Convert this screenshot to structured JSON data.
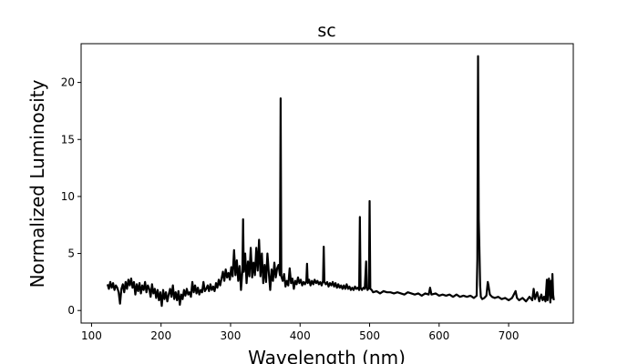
{
  "chart_data": {
    "type": "line",
    "title": "sc",
    "xlabel": "Wavelength (nm)",
    "ylabel": "Normalized Luminosity",
    "xlim": [
      85,
      793
    ],
    "ylim": [
      -1.1,
      23.4
    ],
    "xticks": [
      100,
      200,
      300,
      400,
      500,
      600,
      700
    ],
    "yticks": [
      0,
      5,
      10,
      15,
      20
    ],
    "grid": false,
    "series": [
      {
        "color": "#000000",
        "points": [
          [
            123,
            2.3
          ],
          [
            125,
            1.9
          ],
          [
            127,
            2.5
          ],
          [
            129,
            2.0
          ],
          [
            131,
            2.4
          ],
          [
            133,
            1.8
          ],
          [
            135,
            2.2
          ],
          [
            137,
            2.0
          ],
          [
            139,
            1.6
          ],
          [
            141,
            0.6
          ],
          [
            143,
            1.9
          ],
          [
            145,
            2.3
          ],
          [
            147,
            1.6
          ],
          [
            149,
            2.5
          ],
          [
            151,
            1.9
          ],
          [
            153,
            2.7
          ],
          [
            155,
            2.2
          ],
          [
            157,
            2.8
          ],
          [
            159,
            2.0
          ],
          [
            161,
            2.5
          ],
          [
            163,
            1.4
          ],
          [
            165,
            2.3
          ],
          [
            167,
            1.7
          ],
          [
            169,
            2.4
          ],
          [
            171,
            1.5
          ],
          [
            173,
            2.2
          ],
          [
            175,
            1.8
          ],
          [
            177,
            2.5
          ],
          [
            179,
            1.6
          ],
          [
            181,
            2.2
          ],
          [
            183,
            1.9
          ],
          [
            185,
            1.2
          ],
          [
            187,
            2.3
          ],
          [
            189,
            1.5
          ],
          [
            191,
            1.9
          ],
          [
            193,
            1.1
          ],
          [
            195,
            1.8
          ],
          [
            197,
            0.9
          ],
          [
            199,
            1.6
          ],
          [
            201,
            0.4
          ],
          [
            203,
            1.8
          ],
          [
            205,
            1.0
          ],
          [
            207,
            1.6
          ],
          [
            209,
            0.8
          ],
          [
            211,
            1.4
          ],
          [
            213,
            1.9
          ],
          [
            215,
            1.2
          ],
          [
            217,
            2.2
          ],
          [
            219,
            1.0
          ],
          [
            221,
            1.6
          ],
          [
            223,
            0.9
          ],
          [
            225,
            1.7
          ],
          [
            227,
            0.5
          ],
          [
            229,
            1.4
          ],
          [
            231,
            1.0
          ],
          [
            233,
            1.8
          ],
          [
            235,
            1.3
          ],
          [
            237,
            1.9
          ],
          [
            239,
            1.4
          ],
          [
            241,
            1.6
          ],
          [
            243,
            1.2
          ],
          [
            245,
            2.5
          ],
          [
            247,
            1.6
          ],
          [
            249,
            2.2
          ],
          [
            251,
            1.5
          ],
          [
            253,
            2.0
          ],
          [
            255,
            1.4
          ],
          [
            257,
            1.8
          ],
          [
            259,
            1.6
          ],
          [
            261,
            2.5
          ],
          [
            263,
            1.7
          ],
          [
            265,
            1.9
          ],
          [
            267,
            2.2
          ],
          [
            269,
            1.7
          ],
          [
            271,
            2.3
          ],
          [
            273,
            1.8
          ],
          [
            275,
            2.1
          ],
          [
            277,
            1.7
          ],
          [
            279,
            2.4
          ],
          [
            281,
            2.0
          ],
          [
            283,
            2.7
          ],
          [
            285,
            2.2
          ],
          [
            287,
            2.8
          ],
          [
            289,
            3.4
          ],
          [
            291,
            2.6
          ],
          [
            293,
            3.6
          ],
          [
            295,
            2.9
          ],
          [
            297,
            3.3
          ],
          [
            299,
            2.7
          ],
          [
            301,
            3.8
          ],
          [
            303,
            3.0
          ],
          [
            305,
            5.3
          ],
          [
            307,
            3.1
          ],
          [
            309,
            4.4
          ],
          [
            311,
            2.6
          ],
          [
            313,
            3.9
          ],
          [
            315,
            1.8
          ],
          [
            317,
            3.5
          ],
          [
            318,
            8.0
          ],
          [
            319,
            3.4
          ],
          [
            321,
            5.0
          ],
          [
            323,
            2.4
          ],
          [
            325,
            4.3
          ],
          [
            327,
            3.0
          ],
          [
            329,
            5.5
          ],
          [
            331,
            2.9
          ],
          [
            333,
            4.2
          ],
          [
            335,
            3.1
          ],
          [
            337,
            5.5
          ],
          [
            339,
            3.5
          ],
          [
            341,
            6.2
          ],
          [
            343,
            3.0
          ],
          [
            345,
            5.0
          ],
          [
            347,
            2.4
          ],
          [
            349,
            4.0
          ],
          [
            351,
            2.5
          ],
          [
            353,
            5.0
          ],
          [
            355,
            3.3
          ],
          [
            357,
            1.8
          ],
          [
            359,
            3.6
          ],
          [
            361,
            2.6
          ],
          [
            363,
            4.2
          ],
          [
            365,
            2.9
          ],
          [
            367,
            3.7
          ],
          [
            369,
            4.0
          ],
          [
            371,
            3.1
          ],
          [
            372,
            18.6
          ],
          [
            373,
            3.0
          ],
          [
            375,
            2.6
          ],
          [
            377,
            3.2
          ],
          [
            379,
            2.1
          ],
          [
            381,
            2.6
          ],
          [
            383,
            2.2
          ],
          [
            385,
            3.7
          ],
          [
            387,
            2.4
          ],
          [
            389,
            2.8
          ],
          [
            391,
            1.9
          ],
          [
            393,
            2.6
          ],
          [
            395,
            2.3
          ],
          [
            397,
            2.9
          ],
          [
            399,
            2.4
          ],
          [
            401,
            2.7
          ],
          [
            403,
            2.2
          ],
          [
            405,
            2.5
          ],
          [
            407,
            2.3
          ],
          [
            409,
            2.6
          ],
          [
            410,
            4.1
          ],
          [
            411,
            2.4
          ],
          [
            413,
            2.7
          ],
          [
            415,
            2.2
          ],
          [
            417,
            2.6
          ],
          [
            419,
            2.3
          ],
          [
            421,
            2.7
          ],
          [
            423,
            2.4
          ],
          [
            425,
            2.6
          ],
          [
            427,
            2.3
          ],
          [
            429,
            2.5
          ],
          [
            431,
            2.2
          ],
          [
            433,
            2.6
          ],
          [
            434,
            5.6
          ],
          [
            435,
            2.5
          ],
          [
            437,
            2.3
          ],
          [
            439,
            2.5
          ],
          [
            441,
            2.1
          ],
          [
            443,
            2.4
          ],
          [
            445,
            2.2
          ],
          [
            447,
            2.5
          ],
          [
            449,
            2.1
          ],
          [
            451,
            2.4
          ],
          [
            453,
            2.0
          ],
          [
            455,
            2.3
          ],
          [
            457,
            2.0
          ],
          [
            459,
            2.2
          ],
          [
            461,
            1.9
          ],
          [
            463,
            2.2
          ],
          [
            465,
            1.9
          ],
          [
            467,
            2.3
          ],
          [
            469,
            1.9
          ],
          [
            471,
            2.1
          ],
          [
            473,
            1.8
          ],
          [
            475,
            2.0
          ],
          [
            477,
            1.8
          ],
          [
            479,
            2.1
          ],
          [
            481,
            1.9
          ],
          [
            483,
            2.0
          ],
          [
            485,
            1.8
          ],
          [
            486,
            8.2
          ],
          [
            487,
            2.0
          ],
          [
            489,
            1.8
          ],
          [
            491,
            2.0
          ],
          [
            493,
            1.9
          ],
          [
            495,
            4.3
          ],
          [
            496,
            2.0
          ],
          [
            497,
            1.8
          ],
          [
            499,
            2.0
          ],
          [
            500,
            9.6
          ],
          [
            501,
            1.9
          ],
          [
            503,
            1.8
          ],
          [
            505,
            1.6
          ],
          [
            510,
            1.7
          ],
          [
            515,
            1.5
          ],
          [
            520,
            1.7
          ],
          [
            525,
            1.6
          ],
          [
            530,
            1.6
          ],
          [
            535,
            1.5
          ],
          [
            540,
            1.6
          ],
          [
            545,
            1.5
          ],
          [
            550,
            1.4
          ],
          [
            555,
            1.6
          ],
          [
            560,
            1.5
          ],
          [
            565,
            1.4
          ],
          [
            570,
            1.5
          ],
          [
            575,
            1.3
          ],
          [
            580,
            1.5
          ],
          [
            585,
            1.4
          ],
          [
            587,
            2.0
          ],
          [
            589,
            1.4
          ],
          [
            595,
            1.5
          ],
          [
            600,
            1.3
          ],
          [
            605,
            1.4
          ],
          [
            610,
            1.3
          ],
          [
            615,
            1.4
          ],
          [
            620,
            1.2
          ],
          [
            625,
            1.4
          ],
          [
            630,
            1.2
          ],
          [
            635,
            1.3
          ],
          [
            640,
            1.2
          ],
          [
            645,
            1.3
          ],
          [
            650,
            1.1
          ],
          [
            654,
            1.3
          ],
          [
            655,
            4.5
          ],
          [
            656,
            22.3
          ],
          [
            657,
            8.0
          ],
          [
            658,
            5.3
          ],
          [
            659,
            2.2
          ],
          [
            660,
            1.2
          ],
          [
            662,
            1.0
          ],
          [
            665,
            1.1
          ],
          [
            668,
            1.3
          ],
          [
            670,
            2.5
          ],
          [
            671,
            2.2
          ],
          [
            673,
            1.4
          ],
          [
            676,
            1.2
          ],
          [
            680,
            1.1
          ],
          [
            685,
            1.2
          ],
          [
            690,
            1.0
          ],
          [
            695,
            1.1
          ],
          [
            700,
            0.9
          ],
          [
            705,
            1.1
          ],
          [
            710,
            1.7
          ],
          [
            712,
            1.1
          ],
          [
            715,
            0.9
          ],
          [
            720,
            1.1
          ],
          [
            725,
            0.8
          ],
          [
            730,
            1.2
          ],
          [
            734,
            0.9
          ],
          [
            736,
            1.9
          ],
          [
            738,
            1.0
          ],
          [
            741,
            1.6
          ],
          [
            744,
            0.8
          ],
          [
            747,
            1.4
          ],
          [
            749,
            0.9
          ],
          [
            751,
            1.2
          ],
          [
            753,
            0.8
          ],
          [
            755,
            2.7
          ],
          [
            756,
            0.9
          ],
          [
            758,
            2.8
          ],
          [
            760,
            0.7
          ],
          [
            761,
            2.6
          ],
          [
            762,
            1.1
          ],
          [
            763,
            3.2
          ],
          [
            764,
            1.4
          ],
          [
            765,
            0.9
          ]
        ]
      }
    ]
  }
}
